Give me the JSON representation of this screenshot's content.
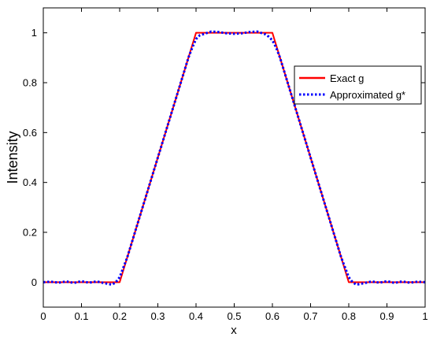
{
  "chart_data": {
    "type": "line",
    "xlabel": "x",
    "ylabel": "Intensity",
    "xlim": [
      0,
      1
    ],
    "ylim": [
      -0.1,
      1.1
    ],
    "xticks": [
      "0",
      "0.1",
      "0.2",
      "0.3",
      "0.4",
      "0.5",
      "0.6",
      "0.7",
      "0.8",
      "0.9",
      "1"
    ],
    "yticks": [
      "0",
      "0.2",
      "0.4",
      "0.6",
      "0.8",
      "1"
    ],
    "grid": false,
    "legend_position": "upper-right",
    "series": [
      {
        "name": "Exact g",
        "color": "#ff0000",
        "style": "solid",
        "x": [
          0,
          0.2,
          0.4,
          0.6,
          0.8,
          1
        ],
        "y": [
          0,
          0,
          1,
          1,
          0,
          0
        ]
      },
      {
        "name": "Approximated g*",
        "color": "#0000ff",
        "style": "dotted",
        "x": [
          0,
          0.02,
          0.04,
          0.06,
          0.08,
          0.1,
          0.12,
          0.14,
          0.16,
          0.18,
          0.19,
          0.2,
          0.21,
          0.22,
          0.24,
          0.26,
          0.28,
          0.3,
          0.32,
          0.34,
          0.36,
          0.38,
          0.39,
          0.4,
          0.41,
          0.42,
          0.44,
          0.46,
          0.48,
          0.5,
          0.52,
          0.54,
          0.56,
          0.58,
          0.59,
          0.6,
          0.61,
          0.62,
          0.64,
          0.66,
          0.68,
          0.7,
          0.72,
          0.74,
          0.76,
          0.78,
          0.79,
          0.8,
          0.81,
          0.82,
          0.84,
          0.86,
          0.88,
          0.9,
          0.92,
          0.94,
          0.96,
          0.98,
          1
        ],
        "y": [
          0,
          0.002,
          -0.002,
          0.003,
          -0.003,
          0.004,
          -0.002,
          0.003,
          -0.004,
          -0.01,
          0.0,
          0.02,
          0.06,
          0.1,
          0.2,
          0.3,
          0.4,
          0.5,
          0.6,
          0.7,
          0.8,
          0.9,
          0.94,
          0.975,
          0.99,
          0.995,
          1.005,
          1.003,
          0.998,
          0.996,
          0.998,
          1.003,
          1.005,
          0.995,
          0.985,
          0.97,
          0.94,
          0.9,
          0.8,
          0.7,
          0.6,
          0.5,
          0.4,
          0.3,
          0.2,
          0.1,
          0.06,
          0.02,
          0.0,
          -0.01,
          -0.004,
          0.003,
          -0.002,
          0.004,
          -0.003,
          0.003,
          -0.002,
          0.002,
          0
        ]
      }
    ]
  }
}
